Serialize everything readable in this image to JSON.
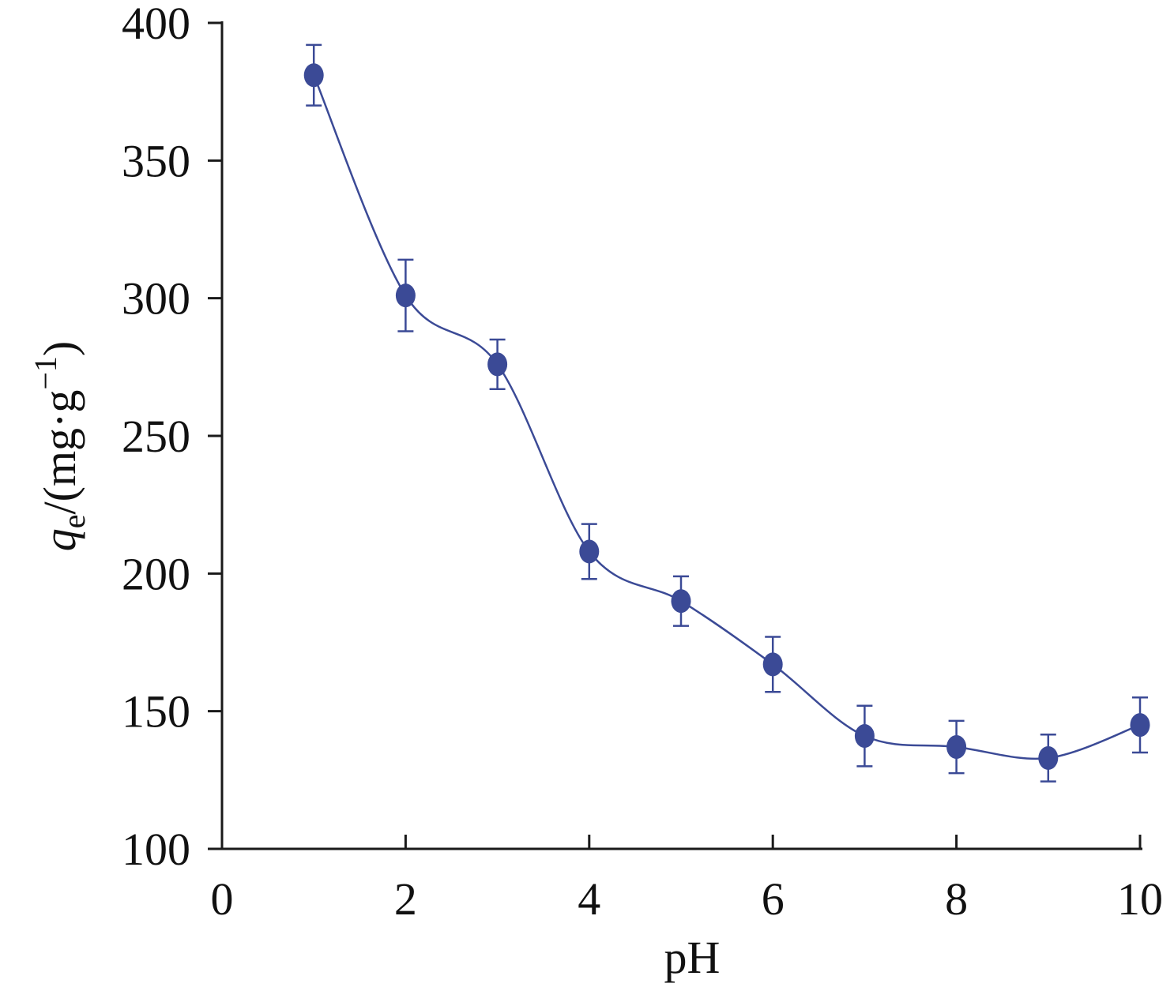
{
  "chart_data": {
    "type": "scatter",
    "xlabel": "pH",
    "ylabel": {
      "symbol": "q",
      "subscript": "e",
      "units_prefix": "/(mg·g",
      "units_exponent": "−1",
      "units_suffix": ")"
    },
    "xlim": [
      0,
      10
    ],
    "ylim": [
      100,
      400
    ],
    "xticks": [
      "0",
      "2",
      "4",
      "6",
      "8",
      "10"
    ],
    "yticks": [
      "100",
      "150",
      "200",
      "250",
      "300",
      "350",
      "400"
    ],
    "grid": false,
    "legend": "none",
    "series": [
      {
        "x": [
          1,
          2,
          3,
          4,
          5,
          6,
          7,
          8,
          9,
          10
        ],
        "y": [
          381,
          301,
          276,
          208,
          190,
          167,
          141,
          137,
          133,
          145
        ],
        "error": [
          11,
          13,
          9,
          10,
          9,
          10,
          11,
          9.5,
          8.5,
          10
        ],
        "marker": "circle",
        "errorbars": true,
        "smooth_fit_line": true
      }
    ],
    "colors": {
      "series": "#3b4a96",
      "axis": "#1a1a1a"
    }
  }
}
